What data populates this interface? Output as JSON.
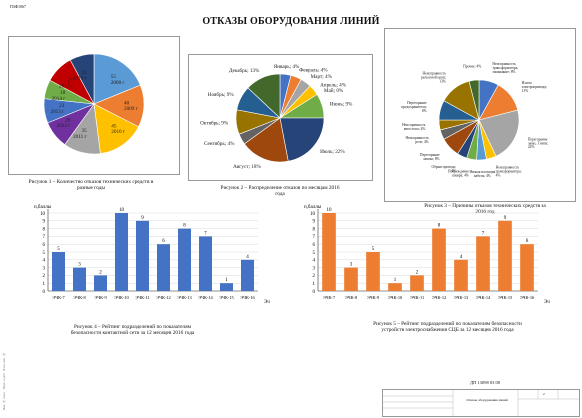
{
  "stamp": "ПЗФ1067",
  "title": "ОТКАЗЫ ОБОРУДОВАНИЯ ЛИНИЙ",
  "doc_code": "ДП 13098 03 00",
  "title_block": {
    "name": "Отказы оборудования линий",
    "sheet": "2"
  },
  "chart_data": [
    {
      "type": "pie",
      "caption": "Рисунок 1 – Количество отказов технических средств в разные годы",
      "labels": [
        "55\n2008 г",
        "40\n2009 г",
        "45\n2010 г",
        "35\n2011 г",
        "26\n2012 г",
        "23\n2013 г",
        "18\n2014 г",
        "27\n2015 г",
        "23\n2016 г"
      ],
      "values": [
        55,
        40,
        45,
        35,
        26,
        23,
        18,
        27,
        23
      ],
      "colors": [
        "#5b9bd5",
        "#ed7d31",
        "#ffc000",
        "#a5a5a5",
        "#7030a0",
        "#4472c4",
        "#70ad47",
        "#c00000",
        "#264478"
      ]
    },
    {
      "type": "pie",
      "caption": "Рисунок 2 – Распределение отказов по месяцам 2016 года",
      "labels": [
        "Январь; 4%",
        "Февраль; 4%",
        "Март; 4%",
        "Апрель; 4%",
        "Май; 0%",
        "Июнь; 9%",
        "Июль; 22%",
        "Август; 18%",
        "Сентябрь; 4%",
        "Октябрь; 9%",
        "Ноябрь; 9%",
        "Декабрь; 13%"
      ],
      "values": [
        4,
        4,
        4,
        4,
        0,
        9,
        22,
        18,
        4,
        9,
        9,
        13
      ],
      "colors": [
        "#4472c4",
        "#ed7d31",
        "#a5a5a5",
        "#ffc000",
        "#5b9bd5",
        "#70ad47",
        "#264478",
        "#9e480e",
        "#636363",
        "#997300",
        "#255e91",
        "#43682b"
      ]
    },
    {
      "type": "pie",
      "caption": "Рисунок 3 – Причины отказов технических средств за 2016 год",
      "labels": [
        "Неисправность трансформатора, замыкание; 8%",
        "Излом электропривода; 13%",
        "Перегорание ламп, 1 нити; 22%",
        "Неисправность трансформатора; 4%",
        "Низкая изоляция кабеля; 4%",
        "Повреждение шкафа; 4%",
        "Обрыв провода; 4%",
        "Перегорание лампы; 8%",
        "Неисправность реле; 4%",
        "Неисправность автостопа; 4%",
        "Перегорание предохранителя; 8%",
        "Неисправность рельсовой цепи; 13%",
        "Прочие; 4%"
      ],
      "values": [
        8,
        13,
        22,
        4,
        4,
        4,
        4,
        8,
        4,
        4,
        8,
        13,
        4
      ],
      "colors": [
        "#4472c4",
        "#ed7d31",
        "#a5a5a5",
        "#ffc000",
        "#5b9bd5",
        "#70ad47",
        "#264478",
        "#9e480e",
        "#636363",
        "#997300",
        "#255e91",
        "#997300",
        "#43682b"
      ]
    },
    {
      "type": "bar",
      "caption": "Рисунок 4 – Рейтинг подразделений по показателям безопасности контактной сети за 12 месяцев 2016 года",
      "ylabel": "п,баллы",
      "xlabel": "Эч",
      "ylim": [
        0,
        10
      ],
      "yticks": [
        0,
        1,
        2,
        3,
        4,
        5,
        6,
        7,
        8,
        9,
        10
      ],
      "categories": [
        "ЭЧК-7",
        "ЭЧК-8",
        "ЭЧК-9",
        "ЭЧК-10",
        "ЭЧК-11",
        "ЭЧК-12",
        "ЭЧК-13",
        "ЭЧК-14",
        "ЭЧК-15",
        "ЭЧК-16"
      ],
      "values": [
        5,
        3,
        2,
        10,
        9,
        6,
        8,
        7,
        1,
        4
      ],
      "color": "#4472c4"
    },
    {
      "type": "bar",
      "caption": "Рисунок 5 – Рейтинг подразделений по показателям безопасности устройств электроснабжения СЦБ за 12 месяцев 2016 года",
      "ylabel": "п,баллы",
      "xlabel": "Эч",
      "ylim": [
        0,
        10
      ],
      "yticks": [
        0,
        1,
        2,
        3,
        4,
        5,
        6,
        7,
        8,
        9,
        10
      ],
      "categories": [
        "ЭЧК-7",
        "ЭЧК-8",
        "ЭЧК-9",
        "ЭЧК-10",
        "ЭЧК-11",
        "ЭЧК-12",
        "ЭЧК-13",
        "ЭЧК-14",
        "ЭЧК-15",
        "ЭЧК-16"
      ],
      "values": [
        10,
        3,
        5,
        1,
        2,
        8,
        4,
        7,
        9,
        6
      ],
      "color": "#ed7d31"
    }
  ]
}
